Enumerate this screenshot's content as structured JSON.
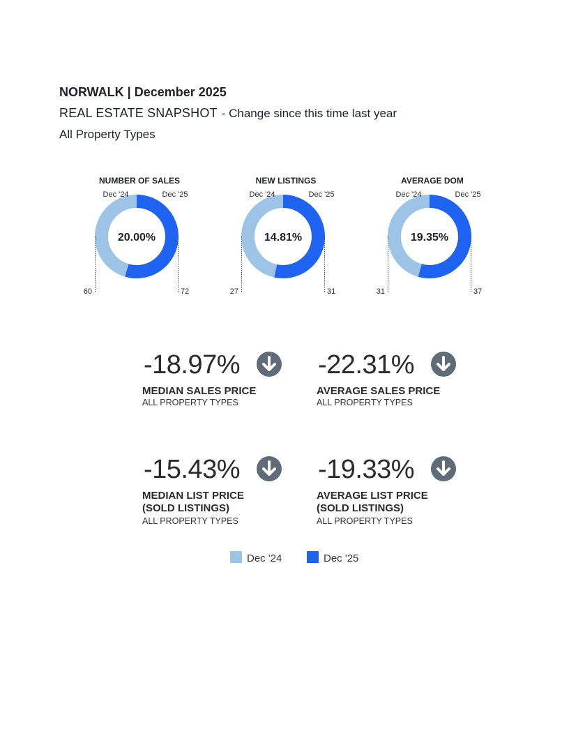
{
  "header": {
    "location_date": "NORWALK | December 2025",
    "title": "REAL ESTATE SNAPSHOT",
    "subtitle": "- Change since this time last year",
    "property_types": "All Property Types"
  },
  "colors": {
    "dec24": "#9dc3e6",
    "dec25": "#1f63f3",
    "arrow_circle": "#5f6b77"
  },
  "chart_data": [
    {
      "type": "pie",
      "title": "NUMBER OF SALES",
      "series": [
        "Dec '24",
        "Dec '25"
      ],
      "values": [
        60,
        72
      ],
      "center_label": "20.00%"
    },
    {
      "type": "pie",
      "title": "NEW LISTINGS",
      "series": [
        "Dec '24",
        "Dec '25"
      ],
      "values": [
        27,
        31
      ],
      "center_label": "14.81%"
    },
    {
      "type": "pie",
      "title": "AVERAGE DOM",
      "series": [
        "Dec '24",
        "Dec '25"
      ],
      "values": [
        31,
        37
      ],
      "center_label": "19.35%"
    }
  ],
  "donut_labels": {
    "left": "Dec '24",
    "right": "Dec '25"
  },
  "metrics": [
    {
      "value": "-18.97%",
      "title": "MEDIAN SALES PRICE",
      "title2": "",
      "sub": "ALL PROPERTY TYPES",
      "direction": "down",
      "icon": "arrow-down-circle-icon"
    },
    {
      "value": "-22.31%",
      "title": "AVERAGE SALES PRICE",
      "title2": "",
      "sub": "ALL PROPERTY TYPES",
      "direction": "down",
      "icon": "arrow-down-circle-icon"
    },
    {
      "value": "-15.43%",
      "title": "MEDIAN LIST PRICE",
      "title2": "(SOLD LISTINGS)",
      "sub": "ALL PROPERTY TYPES",
      "direction": "down",
      "icon": "arrow-down-circle-icon"
    },
    {
      "value": "-19.33%",
      "title": "AVERAGE LIST PRICE",
      "title2": "(SOLD LISTINGS)",
      "sub": "ALL PROPERTY TYPES",
      "direction": "down",
      "icon": "arrow-down-circle-icon"
    }
  ],
  "legend": [
    {
      "label": "Dec '24",
      "color": "#9dc3e6"
    },
    {
      "label": "Dec '25",
      "color": "#1f63f3"
    }
  ]
}
